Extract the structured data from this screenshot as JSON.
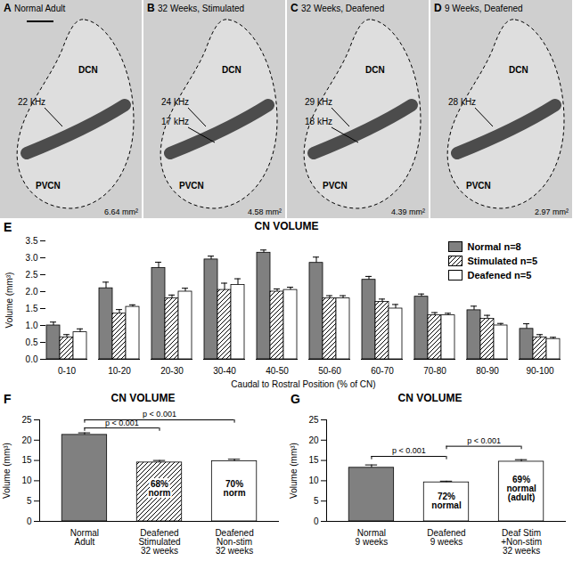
{
  "image_panels": [
    {
      "letter": "A",
      "title": "Normal Adult",
      "regions": [
        "DCN",
        "PVCN"
      ],
      "frequencies": [
        "22 kHz"
      ],
      "area": "6.64 mm²"
    },
    {
      "letter": "B",
      "title": "32 Weeks, Stimulated",
      "regions": [
        "DCN",
        "PVCN"
      ],
      "frequencies": [
        "24 kHz",
        "17 kHz"
      ],
      "area": "4.58 mm²"
    },
    {
      "letter": "C",
      "title": "32 Weeks, Deafened",
      "regions": [
        "DCN",
        "PVCN"
      ],
      "frequencies": [
        "29 kHz",
        "18 kHz"
      ],
      "area": "4.39 mm²"
    },
    {
      "letter": "D",
      "title": "9 Weeks, Deafened",
      "regions": [
        "DCN",
        "PVCN"
      ],
      "frequencies": [
        "28 kHz"
      ],
      "area": "2.97 mm²"
    }
  ],
  "chart_data": [
    {
      "type": "bar",
      "panel": "E",
      "title": "CN VOLUME",
      "x_label": "Caudal to Rostral Position (% of CN)",
      "y_label": "Volume (mm³)",
      "categories": [
        "0-10",
        "10-20",
        "20-30",
        "30-40",
        "40-50",
        "50-60",
        "60-70",
        "70-80",
        "80-90",
        "90-100"
      ],
      "series": [
        {
          "name": "Normal n=8",
          "color": "#808080",
          "values": [
            1.0,
            2.1,
            2.7,
            2.95,
            3.15,
            2.85,
            2.35,
            1.85,
            1.45,
            0.9
          ],
          "errors": [
            0.1,
            0.18,
            0.17,
            0.1,
            0.08,
            0.17,
            0.1,
            0.08,
            0.12,
            0.15
          ]
        },
        {
          "name": "Stimulated n=5",
          "color": "hatched",
          "values": [
            0.65,
            1.35,
            1.8,
            2.05,
            2.0,
            1.8,
            1.7,
            1.3,
            1.2,
            0.65
          ],
          "errors": [
            0.08,
            0.12,
            0.1,
            0.2,
            0.08,
            0.08,
            0.08,
            0.08,
            0.1,
            0.08
          ]
        },
        {
          "name": "Deafened n=5",
          "color": "#ffffff",
          "values": [
            0.8,
            1.55,
            2.0,
            2.2,
            2.05,
            1.8,
            1.5,
            1.3,
            1.0,
            0.6
          ],
          "errors": [
            0.1,
            0.06,
            0.1,
            0.18,
            0.08,
            0.08,
            0.12,
            0.06,
            0.06,
            0.05
          ]
        }
      ],
      "ylim": [
        0,
        3.5
      ],
      "yticks": [
        0,
        0.5,
        1,
        1.5,
        2,
        2.5,
        3,
        3.5
      ],
      "legend": "top-right"
    },
    {
      "type": "bar",
      "panel": "F",
      "title": "CN VOLUME",
      "y_label": "Volume (mm³)",
      "categories": [
        "Normal\nAdult",
        "Deafened\nStimulated\n32 weeks",
        "Deafened\nNon-stim\n32 weeks"
      ],
      "values": [
        21.3,
        14.5,
        14.8
      ],
      "errors": [
        0.5,
        0.5,
        0.5
      ],
      "colors": [
        "#808080",
        "hatched",
        "#ffffff"
      ],
      "annotations": [
        {
          "text": "68%\nnorm",
          "category": "Deafened\nStimulated\n32 weeks",
          "y": 8
        },
        {
          "text": "70%\nnorm",
          "category": "Deafened\nNon-stim\n32 weeks",
          "y": 8
        }
      ],
      "comparisons": [
        {
          "from": "Normal\nAdult",
          "to": "Deafened\nStimulated\n32 weeks",
          "y": 23,
          "label": "p < 0.001"
        },
        {
          "from": "Normal\nAdult",
          "to": "Deafened\nNon-stim\n32 weeks",
          "y": 25,
          "label": "p < 0.001"
        }
      ],
      "ylim": [
        0,
        25
      ],
      "yticks": [
        0,
        5,
        10,
        15,
        20,
        25
      ]
    },
    {
      "type": "bar",
      "panel": "G",
      "title": "CN VOLUME",
      "y_label": "Volume (mm³)",
      "categories": [
        "Normal\n9 weeks",
        "Deafened\n9 weeks",
        "Deaf Stim\n+Non-stim\n32 weeks"
      ],
      "values": [
        13.2,
        9.6,
        14.7
      ],
      "errors": [
        0.7,
        0.3,
        0.5
      ],
      "colors": [
        "#808080",
        "#ffffff",
        "#ffffff"
      ],
      "annotations": [
        {
          "text": "72%\nnormal",
          "category": "Deafened\n9 weeks",
          "y": 5
        },
        {
          "text": "69%\nnormal\n(adult)",
          "category": "Deaf Stim\n+Non-stim\n32 weeks",
          "y": 8
        }
      ],
      "comparisons": [
        {
          "from": "Normal\n9 weeks",
          "to": "Deafened\n9 weeks",
          "y": 16,
          "label": "p < 0.001"
        },
        {
          "from": "Deafened\n9 weeks",
          "to": "Deaf Stim\n+Non-stim\n32 weeks",
          "y": 18.5,
          "label": "p < 0.001"
        }
      ],
      "ylim": [
        0,
        25
      ],
      "yticks": [
        0,
        5,
        10,
        15,
        20,
        25
      ]
    }
  ]
}
